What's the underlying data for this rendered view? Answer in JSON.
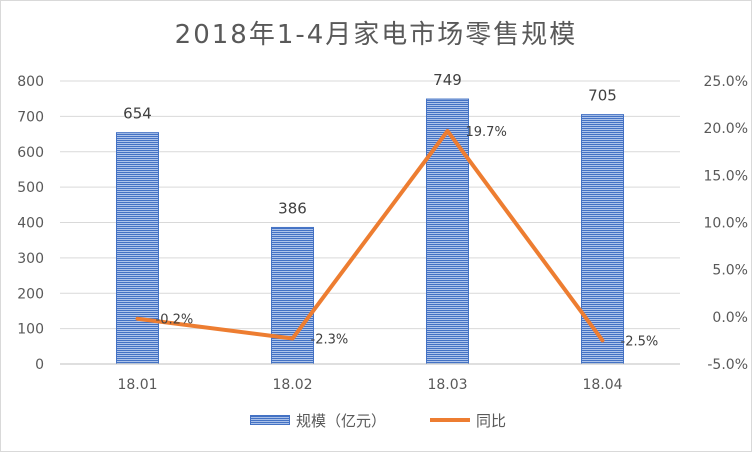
{
  "chart_data": {
    "type": "bar",
    "title": "2018年1-4月家电市场零售规模",
    "categories": [
      "18.01",
      "18.02",
      "18.03",
      "18.04"
    ],
    "series": [
      {
        "name": "规模（亿元）",
        "type": "bar",
        "axis": "left",
        "values": [
          654,
          386,
          749,
          705
        ],
        "labels": [
          "654",
          "386",
          "749",
          "705"
        ],
        "color": "#4472c4"
      },
      {
        "name": "同比",
        "type": "line",
        "axis": "right",
        "values": [
          -0.2,
          -2.3,
          19.7,
          -2.5
        ],
        "labels": [
          "-0.2%",
          "-2.3%",
          "19.7%",
          "-2.5%"
        ],
        "color": "#ed7d31"
      }
    ],
    "y_left": {
      "ylim": [
        0,
        800
      ],
      "ticks": [
        0,
        100,
        200,
        300,
        400,
        500,
        600,
        700,
        800
      ],
      "tick_labels": [
        "0",
        "100",
        "200",
        "300",
        "400",
        "500",
        "600",
        "700",
        "800"
      ]
    },
    "y_right": {
      "ylim": [
        -5,
        25
      ],
      "ticks": [
        -5,
        0,
        5,
        10,
        15,
        20,
        25
      ],
      "tick_labels": [
        "-5.0%",
        "0.0%",
        "5.0%",
        "10.0%",
        "15.0%",
        "20.0%",
        "25.0%"
      ]
    },
    "grid": true,
    "legend_position": "bottom"
  }
}
